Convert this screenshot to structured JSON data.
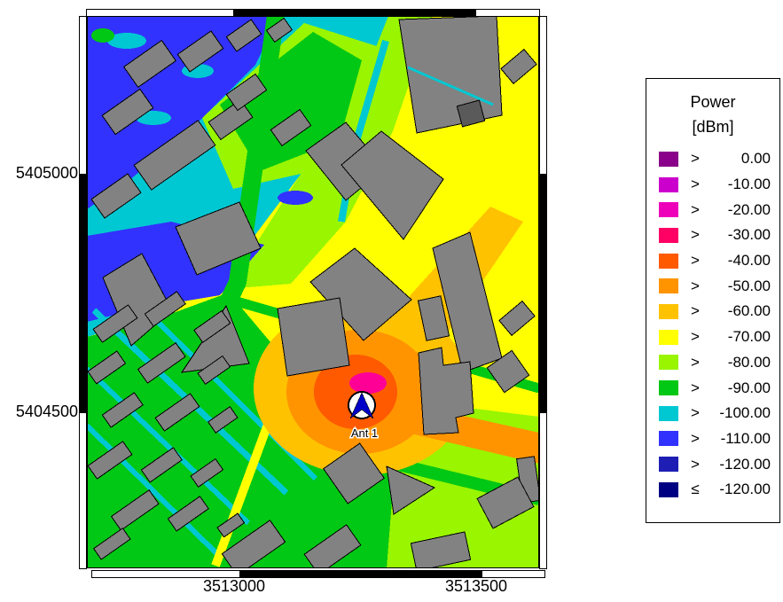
{
  "plot": {
    "axis": {
      "y_ticks": [
        "5405000",
        "5404500"
      ],
      "x_ticks": [
        "3513000",
        "3513500"
      ]
    },
    "antenna": {
      "label": "Ant 1"
    }
  },
  "legend": {
    "title_line1": "Power",
    "title_line2": "[dBm]",
    "entries": [
      {
        "op": ">",
        "value": "0.00",
        "color": "#8A008A"
      },
      {
        "op": ">",
        "value": "-10.00",
        "color": "#CC00CC"
      },
      {
        "op": ">",
        "value": "-20.00",
        "color": "#EE00BB"
      },
      {
        "op": ">",
        "value": "-30.00",
        "color": "#FF0064"
      },
      {
        "op": ">",
        "value": "-40.00",
        "color": "#FF5A00"
      },
      {
        "op": ">",
        "value": "-50.00",
        "color": "#FF9400"
      },
      {
        "op": ">",
        "value": "-60.00",
        "color": "#FFC200"
      },
      {
        "op": ">",
        "value": "-70.00",
        "color": "#FFFF00"
      },
      {
        "op": ">",
        "value": "-80.00",
        "color": "#99F500"
      },
      {
        "op": ">",
        "value": "-90.00",
        "color": "#00C814"
      },
      {
        "op": ">",
        "value": "-100.00",
        "color": "#00C8D2"
      },
      {
        "op": ">",
        "value": "-110.00",
        "color": "#3232FF"
      },
      {
        "op": ">",
        "value": "-120.00",
        "color": "#1E1EB4"
      },
      {
        "op": "≤",
        "value": "-120.00",
        "color": "#000082"
      }
    ]
  },
  "palette": {
    "building": "#828282",
    "building_dark": "#5A5A5A",
    "antenna_arrow": "#0000C8",
    "frame": "#000000"
  }
}
